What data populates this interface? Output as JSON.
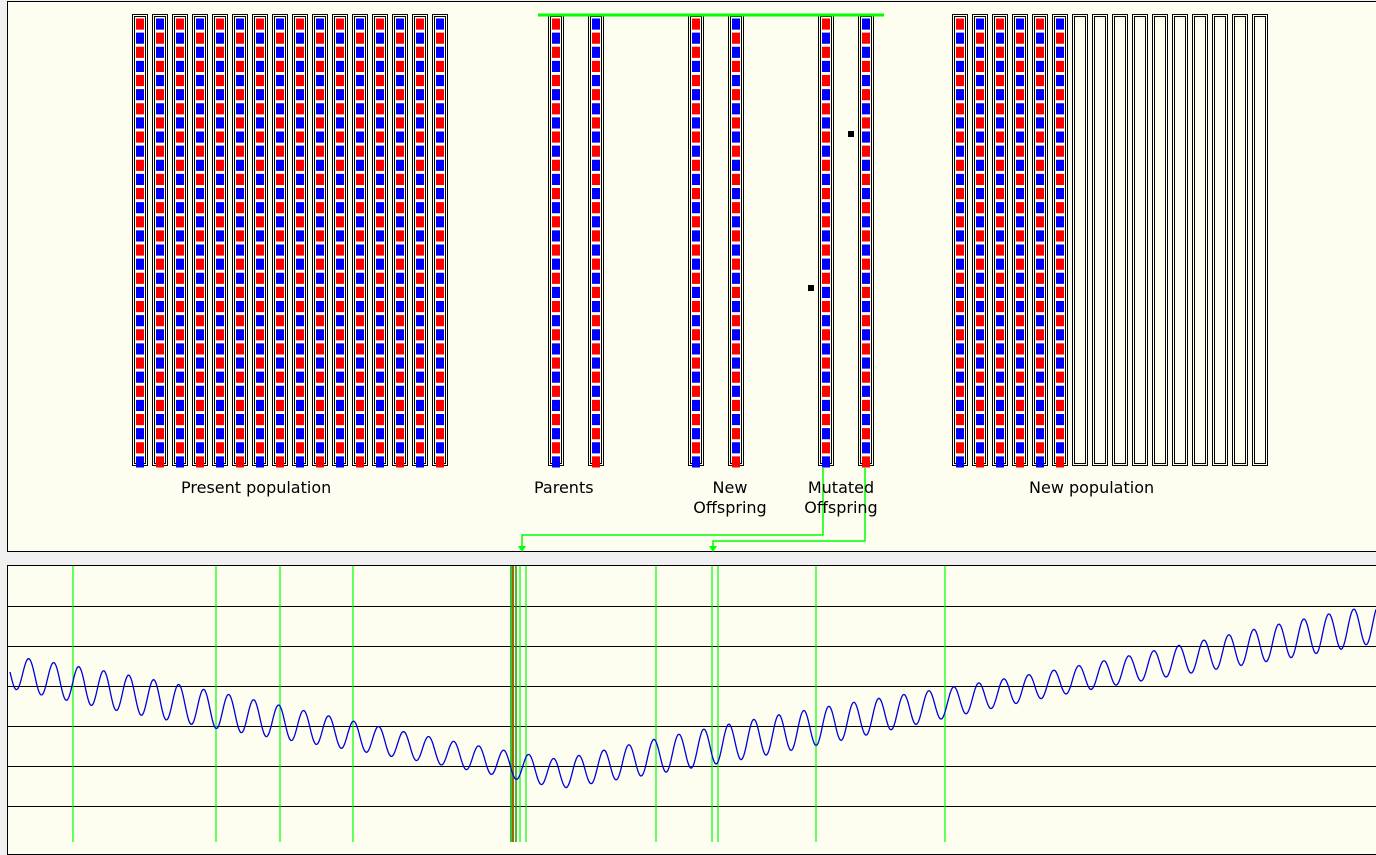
{
  "labels": {
    "present_population": "Present population",
    "parents": "Parents",
    "new_offspring": [
      "New",
      "Offspring"
    ],
    "mutated_offspring": [
      "Mutated",
      "Offspring"
    ],
    "new_population": "New population"
  },
  "colors": {
    "gene_red": "#ff0000",
    "gene_blue": "#0000ff",
    "selection_line": "#00ff00",
    "curve": "#0000dd",
    "panel_bg": "#fdfdf0",
    "chosen_line": "#996600"
  },
  "population": {
    "present_count": 16,
    "genes_per_chromosome": 32,
    "new_population_filled": 6,
    "new_population_total": 16,
    "mutations": [
      {
        "chromosome": "mutated_offspring_1",
        "gene_index": 19
      },
      {
        "chromosome": "mutated_offspring_2",
        "gene_index": 8
      }
    ]
  },
  "fitness": {
    "horizontal_gridlines": 6,
    "selection_markers_count": 11
  }
}
